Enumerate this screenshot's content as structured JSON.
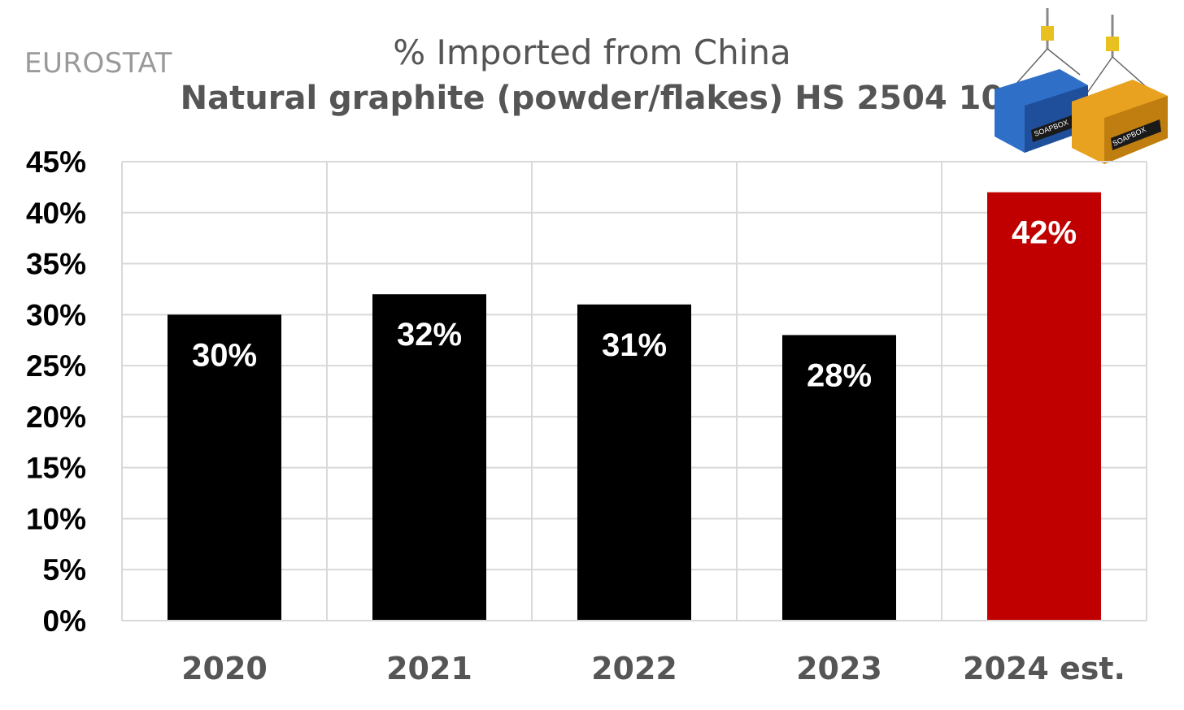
{
  "source_label": "EUROSTAT",
  "chart_data": {
    "type": "bar",
    "title": "% Imported  from China",
    "subtitle": "Natural graphite (powder/flakes) HS 2504 10",
    "categories": [
      "2020",
      "2021",
      "2022",
      "2023",
      "2024 est."
    ],
    "values": [
      30,
      32,
      31,
      28,
      42
    ],
    "data_labels": [
      "30%",
      "32%",
      "31%",
      "28%",
      "42%"
    ],
    "bar_colors": [
      "#000000",
      "#000000",
      "#000000",
      "#000000",
      "#c00000"
    ],
    "y_ticks": [
      "0%",
      "5%",
      "10%",
      "15%",
      "20%",
      "25%",
      "30%",
      "35%",
      "40%",
      "45%"
    ],
    "ylim": [
      0,
      45
    ],
    "xlabel": "",
    "ylabel": "",
    "grid": true
  },
  "logo": {
    "icon": "cargo-containers-icon",
    "container_labels": [
      "SOAPBOX",
      "SOAPBOX"
    ],
    "colors": [
      "#2f6fc7",
      "#e8a21f"
    ]
  }
}
